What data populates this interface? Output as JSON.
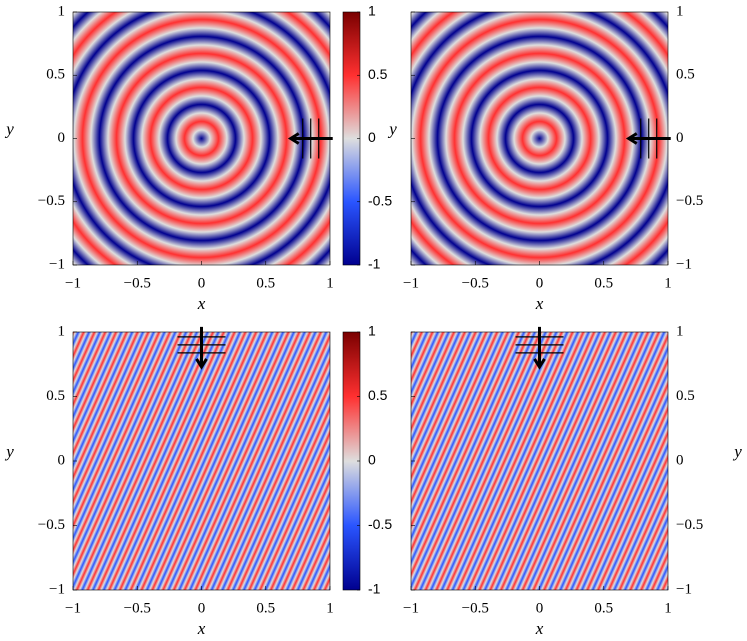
{
  "chart_data": [
    {
      "type": "heatmap",
      "x_label": "x",
      "y_label": "y",
      "xlim": [
        -1,
        1
      ],
      "ylim": [
        -1,
        1
      ],
      "xticks": [
        {
          "value": -1,
          "label": "−1"
        },
        {
          "value": -0.5,
          "label": "−0.5"
        },
        0,
        0.5,
        1
      ],
      "yticks": [
        {
          "value": -1,
          "label": "−1"
        },
        {
          "value": -0.5,
          "label": "−0.5"
        },
        0,
        0.5,
        1
      ],
      "colorbar": {
        "lim": [
          -1,
          1
        ],
        "ticks": [
          -1,
          -0.5,
          0,
          0.5,
          1
        ]
      },
      "colormap": [
        "#00008f",
        "#2a55ff",
        "#dedede",
        "#ff3030",
        "#7a0000"
      ]
    },
    {
      "type": "heatmap",
      "x_label": "x",
      "y_label": "y",
      "xlim": [
        -1,
        1
      ],
      "ylim": [
        -1,
        1
      ],
      "xticks": [
        {
          "value": -1,
          "label": "−1"
        },
        {
          "value": -0.5,
          "label": "−0.5"
        },
        0,
        0.5,
        1
      ],
      "yticks": [
        {
          "value": -1,
          "label": "−1"
        },
        {
          "value": -0.5,
          "label": "−0.5"
        },
        0,
        0.5,
        1
      ],
      "colormap": [
        "#00008f",
        "#2a55ff",
        "#dedede",
        "#ff3030",
        "#7a0000"
      ]
    },
    {
      "type": "heatmap",
      "x_label": "x",
      "y_label": "y",
      "xlim": [
        -1,
        1
      ],
      "ylim": [
        -1,
        1
      ],
      "xticks": [
        {
          "value": -1,
          "label": "−1"
        },
        {
          "value": -0.5,
          "label": "−0.5"
        },
        0,
        0.5,
        1
      ],
      "yticks": [
        {
          "value": -1,
          "label": "−1"
        },
        {
          "value": -0.5,
          "label": "−0.5"
        },
        0,
        0.5,
        1
      ],
      "colorbar": {
        "lim": [
          -1,
          1
        ],
        "ticks": [
          -1,
          -0.5,
          0,
          0.5,
          1
        ]
      },
      "colormap": [
        "#00008f",
        "#2a55ff",
        "#dedede",
        "#ff3030",
        "#7a0000"
      ]
    },
    {
      "type": "heatmap",
      "x_label": "x",
      "y_label": "y",
      "xlim": [
        -1,
        1
      ],
      "ylim": [
        -1,
        1
      ],
      "xticks": [
        {
          "value": -1,
          "label": "−1"
        },
        {
          "value": -0.5,
          "label": "−0.5"
        },
        0,
        0.5,
        1
      ],
      "yticks": [
        {
          "value": -1,
          "label": "−1"
        },
        {
          "value": -0.5,
          "label": "−0.5"
        },
        0,
        0.5,
        1
      ],
      "colormap": [
        "#00008f",
        "#2a55ff",
        "#dedede",
        "#ff3030",
        "#7a0000"
      ]
    }
  ]
}
